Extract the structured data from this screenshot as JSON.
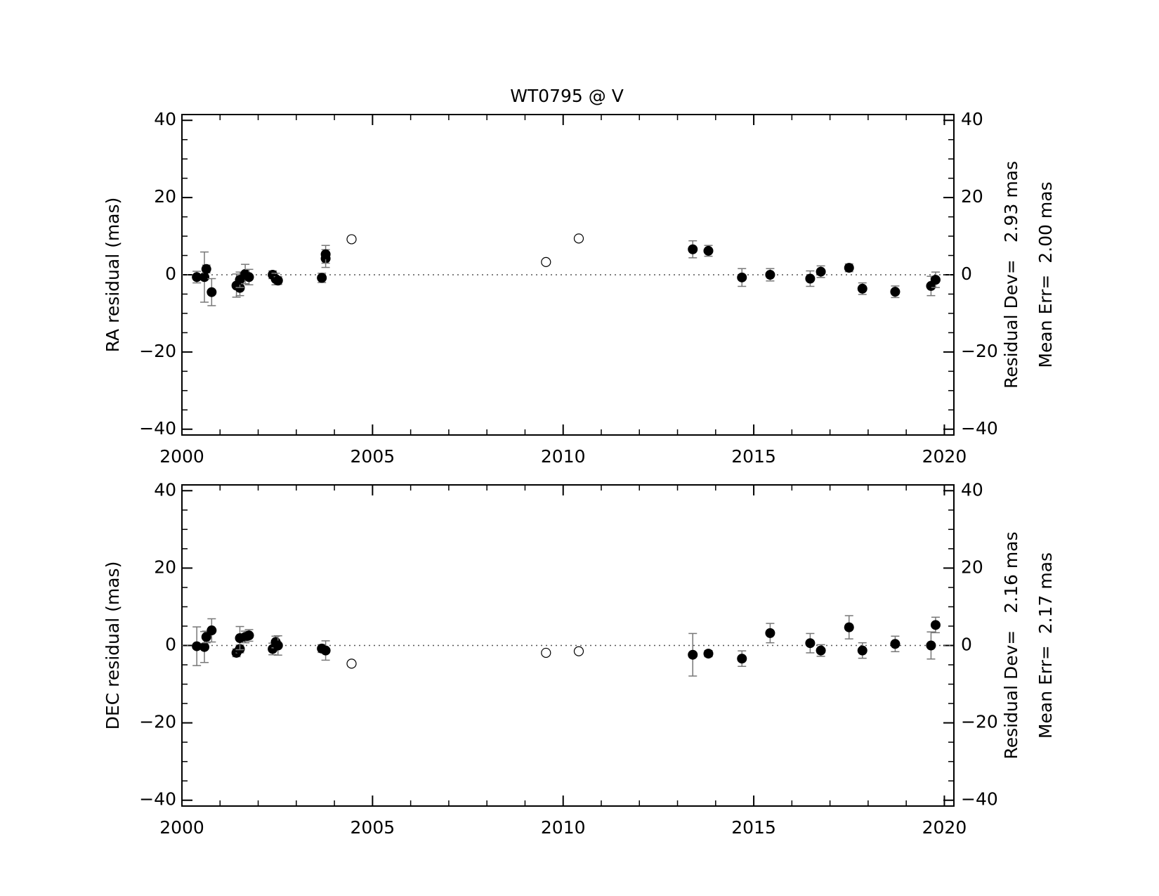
{
  "chart_data": [
    {
      "type": "scatter",
      "title": "WT0795 @ V",
      "y_label": "RA residual (mas)",
      "annotations": [
        "Residual Dev=   2.93 mas",
        "Mean Err=  2.00 mas"
      ],
      "xlim": [
        2000,
        2020.25
      ],
      "xticks": [
        2000,
        2005,
        2010,
        2015,
        2020
      ],
      "ylim": [
        -41.5,
        41.5
      ],
      "yticks": [
        {
          "value": -40,
          "label": "−40"
        },
        {
          "value": -20,
          "label": "−20"
        },
        0,
        20,
        40
      ],
      "zero_line": true,
      "series": [
        {
          "marker": "filled",
          "color": "#000000",
          "error_color": "#777777",
          "x": [
            2000.39,
            2000.59,
            2000.64,
            2000.78,
            2001.43,
            2001.52,
            2001.52,
            2001.66,
            2001.76,
            2002.38,
            2002.46,
            2002.52,
            2003.67,
            2003.77,
            2003.77,
            2013.4,
            2013.81,
            2014.69,
            2015.43,
            2016.48,
            2016.76,
            2017.5,
            2017.85,
            2018.71,
            2019.65,
            2019.77
          ],
          "values": [
            -0.6,
            -0.6,
            1.5,
            -4.5,
            -2.8,
            -3.4,
            -1.3,
            0.2,
            -0.6,
            0,
            -1.1,
            -1.5,
            -0.8,
            4.2,
            5.3,
            6.6,
            6.2,
            -0.7,
            0,
            -1,
            0.8,
            1.8,
            -3.6,
            -4.4,
            -2.9,
            -1.3
          ],
          "errors": [
            1.5,
            6.5,
            1,
            3.5,
            3,
            2,
            2,
            2.5,
            2,
            1,
            1.5,
            1,
            1.2,
            2.3,
            2.3,
            2.2,
            1.4,
            2.3,
            1.6,
            2,
            1.5,
            1,
            1.5,
            1.5,
            2.5,
            2
          ]
        },
        {
          "marker": "open",
          "color": "#000000",
          "x": [
            2004.45,
            2009.55,
            2010.41
          ],
          "values": [
            9.2,
            3.3,
            9.4
          ]
        }
      ]
    },
    {
      "type": "scatter",
      "y_label": "DEC residual (mas)",
      "annotations": [
        "Residual Dev=   2.16 mas",
        "Mean Err=  2.17 mas"
      ],
      "xlim": [
        2000,
        2020.25
      ],
      "xticks": [
        2000,
        2005,
        2010,
        2015,
        2020
      ],
      "ylim": [
        -41.5,
        41.5
      ],
      "yticks": [
        {
          "value": -40,
          "label": "−40"
        },
        {
          "value": -20,
          "label": "−20"
        },
        0,
        20,
        40
      ],
      "zero_line": true,
      "series": [
        {
          "marker": "filled",
          "color": "#000000",
          "error_color": "#777777",
          "x": [
            2000.39,
            2000.59,
            2000.64,
            2000.78,
            2001.43,
            2001.52,
            2001.52,
            2001.66,
            2001.76,
            2002.38,
            2002.46,
            2002.52,
            2003.67,
            2003.77,
            2013.4,
            2013.81,
            2014.69,
            2015.43,
            2016.48,
            2016.76,
            2017.5,
            2017.85,
            2018.71,
            2019.65,
            2019.77
          ],
          "values": [
            -0.2,
            -0.4,
            2.2,
            3.9,
            -1.9,
            -0.9,
            1.9,
            2.2,
            2.6,
            -0.9,
            0.9,
            0,
            -0.8,
            -1.3,
            -2.4,
            -2.1,
            -3.4,
            3.2,
            0.6,
            -1.3,
            4.7,
            -1.3,
            0.4,
            0,
            5.3
          ],
          "errors": [
            5,
            4,
            1.5,
            3,
            1,
            1,
            3,
            1.5,
            1.5,
            1.5,
            1.5,
            2.5,
            1,
            2.5,
            5.5,
            0.8,
            2,
            2.5,
            2.5,
            1.5,
            3,
            2,
            2,
            3.5,
            2
          ]
        },
        {
          "marker": "open",
          "color": "#000000",
          "x": [
            2004.45,
            2009.55,
            2010.41
          ],
          "values": [
            -4.7,
            -1.9,
            -1.5
          ]
        }
      ]
    }
  ]
}
